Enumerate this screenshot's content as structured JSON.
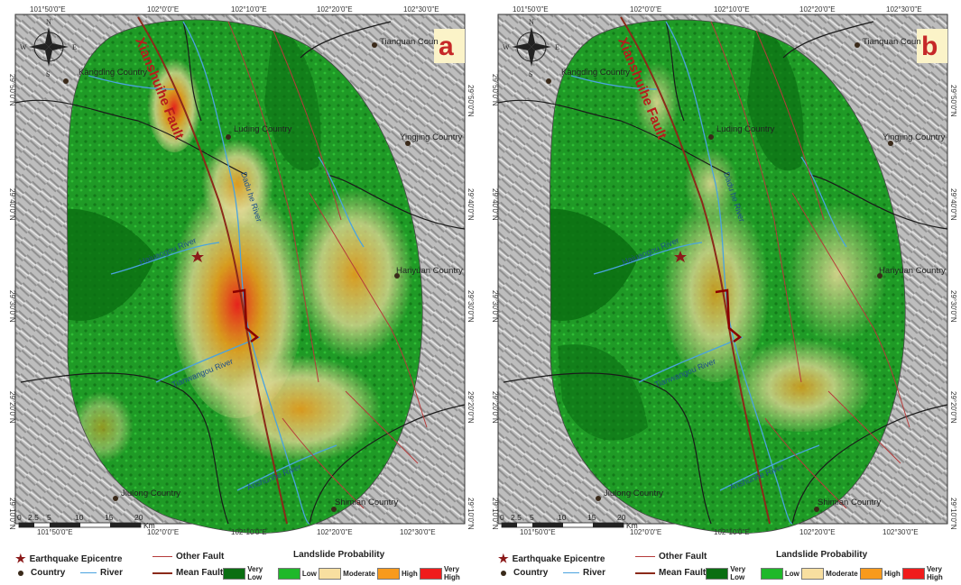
{
  "panels": [
    {
      "id": "a",
      "label": "a",
      "top_ticks": [
        "101°50'0\"E",
        "102°0'0\"E",
        "102°10'0\"E",
        "102°20'0\"E",
        "102°30'0\"E"
      ],
      "bottom_ticks": [
        "101°50'0\"E",
        "102°0'0\"E",
        "102°10'0\"E",
        "102°20'0\"E",
        "102°30'0\"E"
      ],
      "left_ticks": [
        "29°50'0\"N",
        "29°40'0\"N",
        "29°30'0\"N",
        "29°20'0\"N",
        "29°10'0\"N"
      ],
      "right_ticks": [
        "29°50'0\"N",
        "29°40'0\"N",
        "29°30'0\"N",
        "29°20'0\"N",
        "29°10'0\"N"
      ],
      "places": [
        "Tianquan Coun",
        "Kangding Country",
        "Luding Country",
        "Yingjing Country",
        "Hanyuan Country",
        "Jiulong Country",
        "Shimian Country"
      ],
      "rivers": [
        "Dadu he River",
        "Haiuaogou River",
        "Tianwangou River",
        "Anshunhe River"
      ],
      "fault_name": "Xianshuihe Fault",
      "scale_ticks": [
        "0",
        "2.5",
        "5",
        "10",
        "15",
        "20"
      ],
      "scale_unit": "Km"
    },
    {
      "id": "b",
      "label": "b",
      "top_ticks": [
        "101°50'0\"E",
        "102°0'0\"E",
        "102°10'0\"E",
        "102°20'0\"E",
        "102°30'0\"E"
      ],
      "bottom_ticks": [
        "101°50'0\"E",
        "102°0'0\"E",
        "102°10'0\"E",
        "102°20'0\"E",
        "102°30'0\"E"
      ],
      "left_ticks": [
        "29°50'0\"N",
        "29°40'0\"N",
        "29°30'0\"N",
        "29°20'0\"N",
        "29°10'0\"N"
      ],
      "right_ticks": [
        "29°50'0\"N",
        "29°40'0\"N",
        "29°30'0\"N",
        "29°20'0\"N",
        "29°10'0\"N"
      ],
      "places": [
        "Tianquan Coun",
        "Kangding Country",
        "Luding Country",
        "Yingjing Country",
        "Hanyuan Country",
        "Jiulong Country",
        "Shimian Country"
      ],
      "rivers": [
        "Dadu he River",
        "Haiuaogou River",
        "Tianwangou River",
        "Anshunhe River"
      ],
      "fault_name": "Xianshuihe Fault",
      "scale_ticks": [
        "0",
        "2.5",
        "5",
        "10",
        "15",
        "20"
      ],
      "scale_unit": "Km"
    }
  ],
  "compass": {
    "n": "N",
    "s": "S",
    "e": "E",
    "w": "W"
  },
  "legend": {
    "epicentre": "Earthquake Epicentre",
    "country": "Country",
    "river": "River",
    "other_fault": "Other Fault",
    "mean_fault": "Mean Fault",
    "probability_title": "Landslide Probability",
    "classes": [
      {
        "label": "Very Low",
        "color": "#0a6e12"
      },
      {
        "label": "Low",
        "color": "#1fb82a"
      },
      {
        "label": "Moderate",
        "color": "#f8dfa0"
      },
      {
        "label": "High",
        "color": "#f89a1c"
      },
      {
        "label": "Very High",
        "color": "#f01c1c"
      }
    ]
  },
  "colors": {
    "relief": "#b9b9b9",
    "river": "#4aa3df",
    "other_fault": "#b53a3a",
    "mean_fault": "#8b2a1a",
    "epicentre": "#8b1a1a"
  }
}
